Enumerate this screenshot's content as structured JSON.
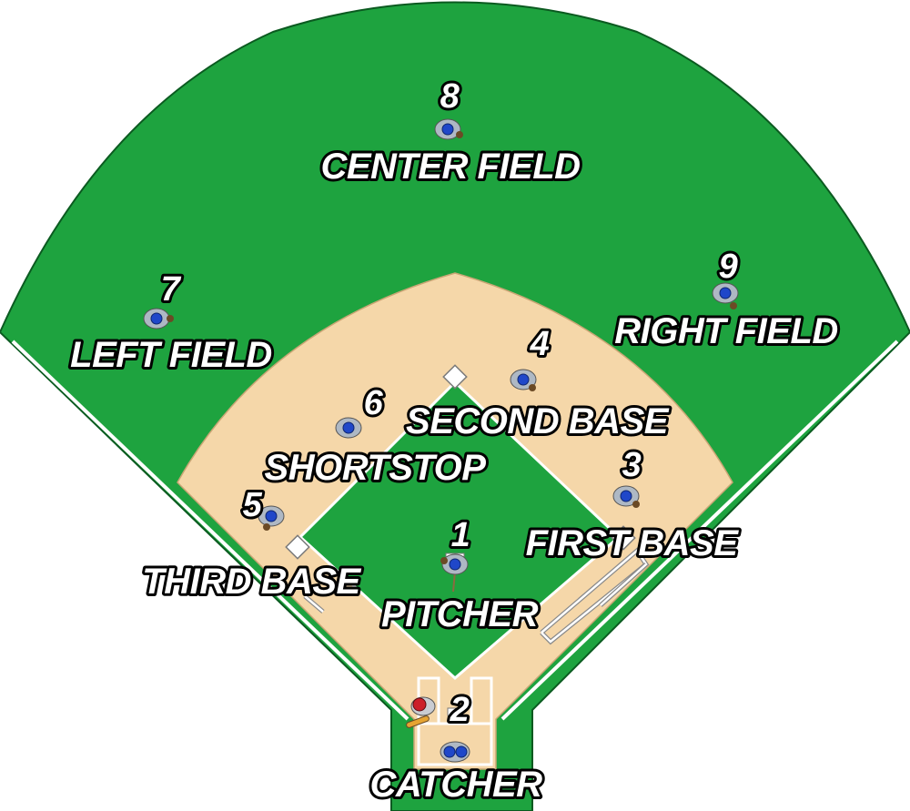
{
  "colors": {
    "grass": "#1ea33f",
    "dirt": "#f5d7a9",
    "line": "#ffffff",
    "jersey": "#aeb8c4",
    "cap": "#1f47c9",
    "glove": "#6b4a25"
  },
  "positions": [
    {
      "key": "pitcher",
      "number": "1",
      "label": "PITCHER"
    },
    {
      "key": "catcher",
      "number": "2",
      "label": "CATCHER"
    },
    {
      "key": "first",
      "number": "3",
      "label": "FIRST BASE"
    },
    {
      "key": "second",
      "number": "4",
      "label": "SECOND BASE"
    },
    {
      "key": "third",
      "number": "5",
      "label": "THIRD BASE"
    },
    {
      "key": "shortstop",
      "number": "6",
      "label": "SHORTSTOP"
    },
    {
      "key": "left",
      "number": "7",
      "label": "LEFT FIELD"
    },
    {
      "key": "center",
      "number": "8",
      "label": "CENTER FIELD"
    },
    {
      "key": "right",
      "number": "9",
      "label": "RIGHT FIELD"
    }
  ]
}
